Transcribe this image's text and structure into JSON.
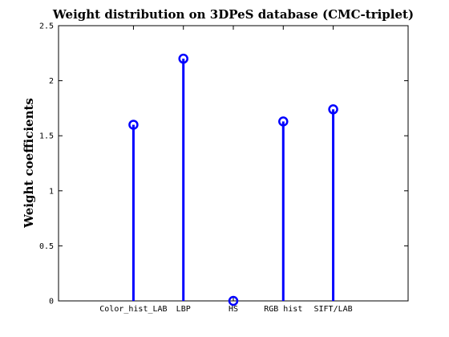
{
  "chart_data": {
    "type": "stem",
    "title": "Weight distribution on 3DPeS database (CMC-triplet)",
    "xlabel": "",
    "ylabel": "Weight coefficients",
    "categories": [
      "Color_hist_LAB",
      "LBP",
      "HS",
      "RGB hist",
      "SIFT/LAB"
    ],
    "x": [
      2,
      3,
      4,
      5,
      6
    ],
    "values": [
      1.6,
      2.2,
      0.0,
      1.63,
      1.74
    ],
    "xlim": [
      0.5,
      7.5
    ],
    "ylim": [
      0,
      2.5
    ],
    "yticks": [
      0,
      0.5,
      1,
      1.5,
      2,
      2.5
    ],
    "ytick_labels": [
      "0",
      "0.5",
      "1",
      "1.5",
      "2",
      "2.5"
    ],
    "grid": false,
    "marker": "circle",
    "color": "#0000ff"
  }
}
